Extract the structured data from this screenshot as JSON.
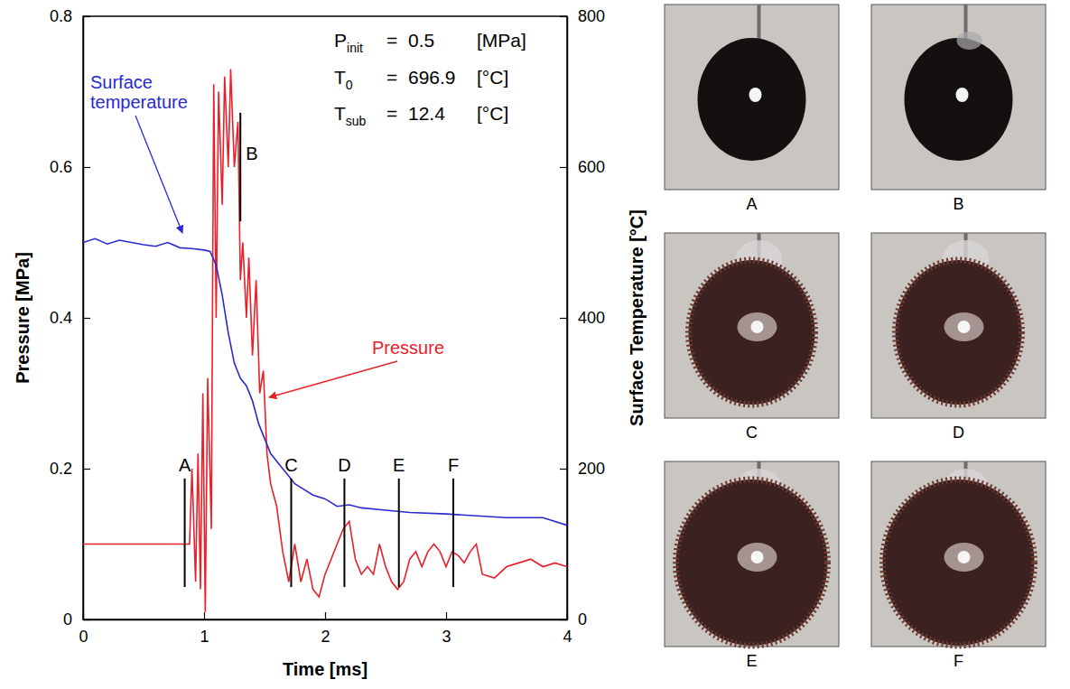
{
  "chart_data": {
    "type": "line",
    "xlabel": "Time [ms]",
    "ylabel": "Pressure [MPa]",
    "y2label": "Surface Temperature [°C]",
    "xlim": [
      0,
      4
    ],
    "xticks": [
      0,
      1,
      2,
      3,
      4
    ],
    "ylim": [
      0,
      0.8
    ],
    "yticks": [
      0,
      0.2,
      0.4,
      0.6,
      0.8
    ],
    "y2lim": [
      0,
      800
    ],
    "y2ticks": [
      0,
      200,
      400,
      600,
      800
    ],
    "grid": false,
    "series": [
      {
        "name": "Pressure",
        "color": "#e8202a",
        "x": [
          0,
          0.2,
          0.4,
          0.6,
          0.8,
          0.88,
          0.9,
          0.93,
          0.95,
          0.97,
          0.99,
          1.01,
          1.03,
          1.06,
          1.08,
          1.1,
          1.12,
          1.15,
          1.17,
          1.2,
          1.22,
          1.25,
          1.28,
          1.3,
          1.32,
          1.35,
          1.37,
          1.4,
          1.43,
          1.46,
          1.49,
          1.52,
          1.55,
          1.6,
          1.65,
          1.7,
          1.75,
          1.8,
          1.85,
          1.9,
          1.95,
          2.0,
          2.05,
          2.1,
          2.15,
          2.2,
          2.25,
          2.3,
          2.35,
          2.4,
          2.45,
          2.5,
          2.55,
          2.6,
          2.65,
          2.7,
          2.75,
          2.8,
          2.85,
          2.9,
          2.95,
          3.0,
          3.05,
          3.1,
          3.15,
          3.2,
          3.25,
          3.3,
          3.4,
          3.5,
          3.6,
          3.7,
          3.8,
          3.9,
          4.0
        ],
        "values": [
          0.1,
          0.1,
          0.1,
          0.1,
          0.1,
          0.1,
          0.2,
          0.05,
          0.22,
          0.04,
          0.3,
          0.01,
          0.32,
          0.12,
          0.71,
          0.4,
          0.7,
          0.55,
          0.72,
          0.6,
          0.73,
          0.6,
          0.66,
          0.45,
          0.5,
          0.4,
          0.48,
          0.35,
          0.45,
          0.3,
          0.33,
          0.22,
          0.18,
          0.15,
          0.09,
          0.05,
          0.1,
          0.05,
          0.08,
          0.04,
          0.03,
          0.06,
          0.08,
          0.1,
          0.12,
          0.13,
          0.08,
          0.06,
          0.07,
          0.06,
          0.1,
          0.07,
          0.05,
          0.04,
          0.05,
          0.08,
          0.09,
          0.07,
          0.09,
          0.1,
          0.09,
          0.07,
          0.09,
          0.085,
          0.075,
          0.09,
          0.1,
          0.06,
          0.055,
          0.07,
          0.075,
          0.08,
          0.07,
          0.075,
          0.07
        ]
      },
      {
        "name": "Surface temperature",
        "color": "#2a2ad0",
        "axis": "y2",
        "x": [
          0,
          0.1,
          0.2,
          0.3,
          0.4,
          0.5,
          0.6,
          0.7,
          0.8,
          0.9,
          1.0,
          1.05,
          1.1,
          1.15,
          1.2,
          1.25,
          1.3,
          1.35,
          1.4,
          1.45,
          1.5,
          1.55,
          1.6,
          1.65,
          1.7,
          1.75,
          1.8,
          1.9,
          2.0,
          2.1,
          2.2,
          2.3,
          2.5,
          2.7,
          3.0,
          3.5,
          3.8,
          4.0
        ],
        "values": [
          500,
          505,
          498,
          503,
          500,
          497,
          495,
          500,
          493,
          492,
          490,
          488,
          470,
          430,
          380,
          340,
          320,
          310,
          290,
          260,
          240,
          220,
          210,
          200,
          190,
          180,
          175,
          165,
          160,
          150,
          152,
          148,
          145,
          142,
          140,
          135,
          135,
          125
        ]
      }
    ],
    "annotations": [
      {
        "symbol": "P",
        "subscript": "init",
        "relation": "=",
        "value": 0.5,
        "unit": "[MPa]"
      },
      {
        "symbol": "T",
        "subscript": "0",
        "relation": "=",
        "value": 696.9,
        "unit": "[°C]"
      },
      {
        "symbol": "T",
        "subscript": "sub",
        "relation": "=",
        "value": 12.4,
        "unit": "[°C]"
      }
    ],
    "markers": [
      {
        "label": "A",
        "x": 0.84,
        "y": [
          0.043,
          0.187
        ]
      },
      {
        "label": "B",
        "x": 1.3,
        "y": [
          0.528,
          0.672
        ]
      },
      {
        "label": "C",
        "x": 1.72,
        "y": [
          0.043,
          0.187
        ]
      },
      {
        "label": "D",
        "x": 2.16,
        "y": [
          0.043,
          0.187
        ]
      },
      {
        "label": "E",
        "x": 2.61,
        "y": [
          0.043,
          0.187
        ]
      },
      {
        "label": "F",
        "x": 3.06,
        "y": [
          0.043,
          0.187
        ]
      }
    ]
  },
  "photos": [
    {
      "label": "A"
    },
    {
      "label": "B"
    },
    {
      "label": "C"
    },
    {
      "label": "D"
    },
    {
      "label": "E"
    },
    {
      "label": "F"
    }
  ]
}
